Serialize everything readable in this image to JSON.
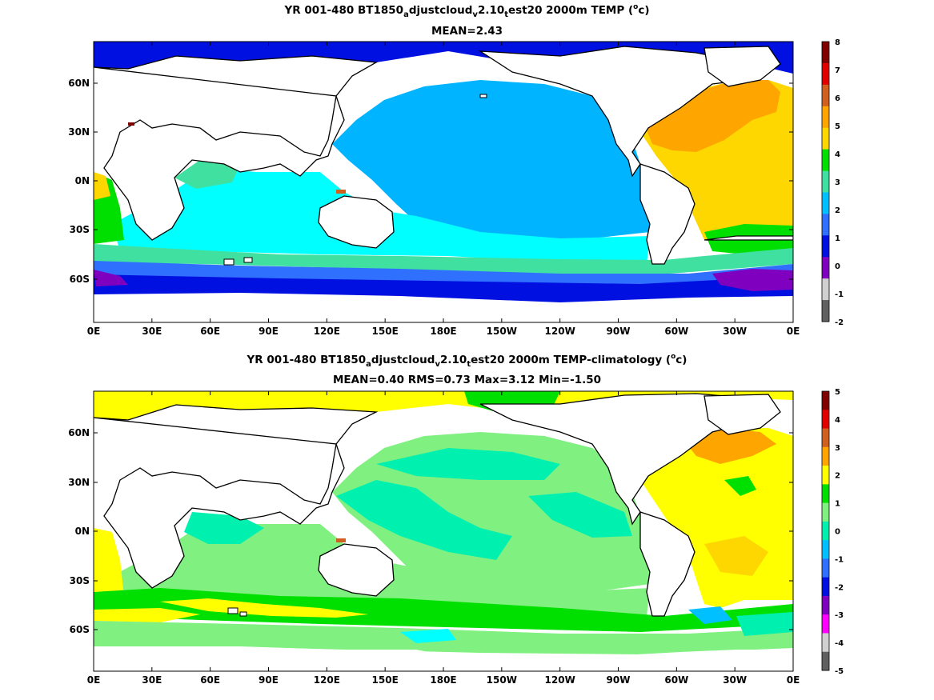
{
  "panels": [
    {
      "title_parts": [
        "YR 001-480 BT1850",
        "a",
        "djustcloud",
        "v",
        "2.10",
        "t",
        "est20 2000m TEMP (",
        "o",
        "c)"
      ],
      "stats": "MEAN=2.43",
      "colorbar": {
        "ticks": [
          "8",
          "7",
          "6",
          "5",
          "4",
          "3",
          "2",
          "1",
          "0",
          "-1",
          "-2"
        ],
        "colors": [
          "#800000",
          "#e00000",
          "#d06020",
          "#ffa500",
          "#ffd700",
          "#00e000",
          "#40e0a0",
          "#00c0ff",
          "#3070ff",
          "#0010e0",
          "#8000c0",
          "#d0d0d0",
          "#606060"
        ]
      }
    },
    {
      "title_parts": [
        "YR 001-480 BT1850",
        "a",
        "djustcloud",
        "v",
        "2.10",
        "t",
        "est20 2000m TEMP-climatology (",
        "o",
        "c)"
      ],
      "stats": "MEAN=0.40   RMS=0.73   Max=3.12   Min=-1.50",
      "colorbar": {
        "ticks": [
          "5",
          "4",
          "3",
          "2",
          "1",
          "0",
          "-1",
          "-2",
          "-3",
          "-4",
          "-5"
        ],
        "colors": [
          "#800000",
          "#e00000",
          "#d06020",
          "#ffa500",
          "#ffff00",
          "#00e000",
          "#80f080",
          "#00f0b0",
          "#00c0ff",
          "#3070ff",
          "#0010e0",
          "#8000c0",
          "#ff00ff",
          "#d0d0d0",
          "#606060"
        ]
      }
    }
  ],
  "xticks": [
    "0E",
    "30E",
    "60E",
    "90E",
    "120E",
    "150E",
    "180E",
    "150W",
    "120W",
    "90W",
    "60W",
    "30W",
    "0E"
  ],
  "yticks": [
    "60N",
    "30N",
    "0N",
    "30S",
    "60S"
  ],
  "colors": {
    "land": "#ffffff",
    "coast": "#000000"
  }
}
